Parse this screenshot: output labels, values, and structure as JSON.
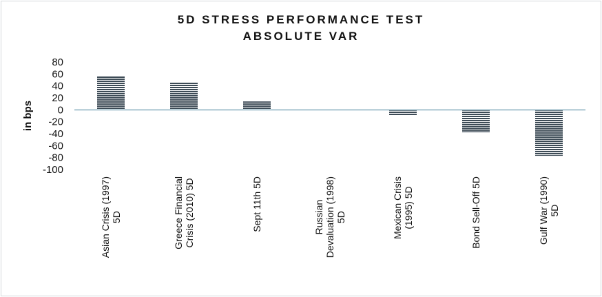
{
  "chart_data": {
    "type": "bar",
    "title": [
      "5D STRESS PERFORMANCE TEST",
      "ABSOLUTE VAR"
    ],
    "ylabel": "in bps",
    "xlabel": "",
    "ylim": [
      -100,
      80
    ],
    "yticks": [
      80,
      60,
      40,
      20,
      0,
      -20,
      -40,
      -60,
      -80,
      -100
    ],
    "categories": [
      [
        "Asian Crisis (1997)",
        "5D"
      ],
      [
        "Greece Financial",
        "Crisis (2010) 5D"
      ],
      [
        "Sept 11th 5D"
      ],
      [
        "Russian",
        "Devaluation (1998)",
        "5D"
      ],
      [
        "Mexican Crisis",
        "(1995) 5D"
      ],
      [
        "Bond Sell-Off 5D"
      ],
      [
        "Gulf War (1990)",
        "5D"
      ]
    ],
    "values": [
      56,
      46,
      14,
      0,
      -9,
      -38,
      -77
    ],
    "grid": false,
    "bar_fill": "horizontal-stripes",
    "colors": {
      "bar_dark": "#3d4b56",
      "bar_light": "#ffffff",
      "zero_line": "#a8c3cf",
      "text": "#111111"
    }
  }
}
